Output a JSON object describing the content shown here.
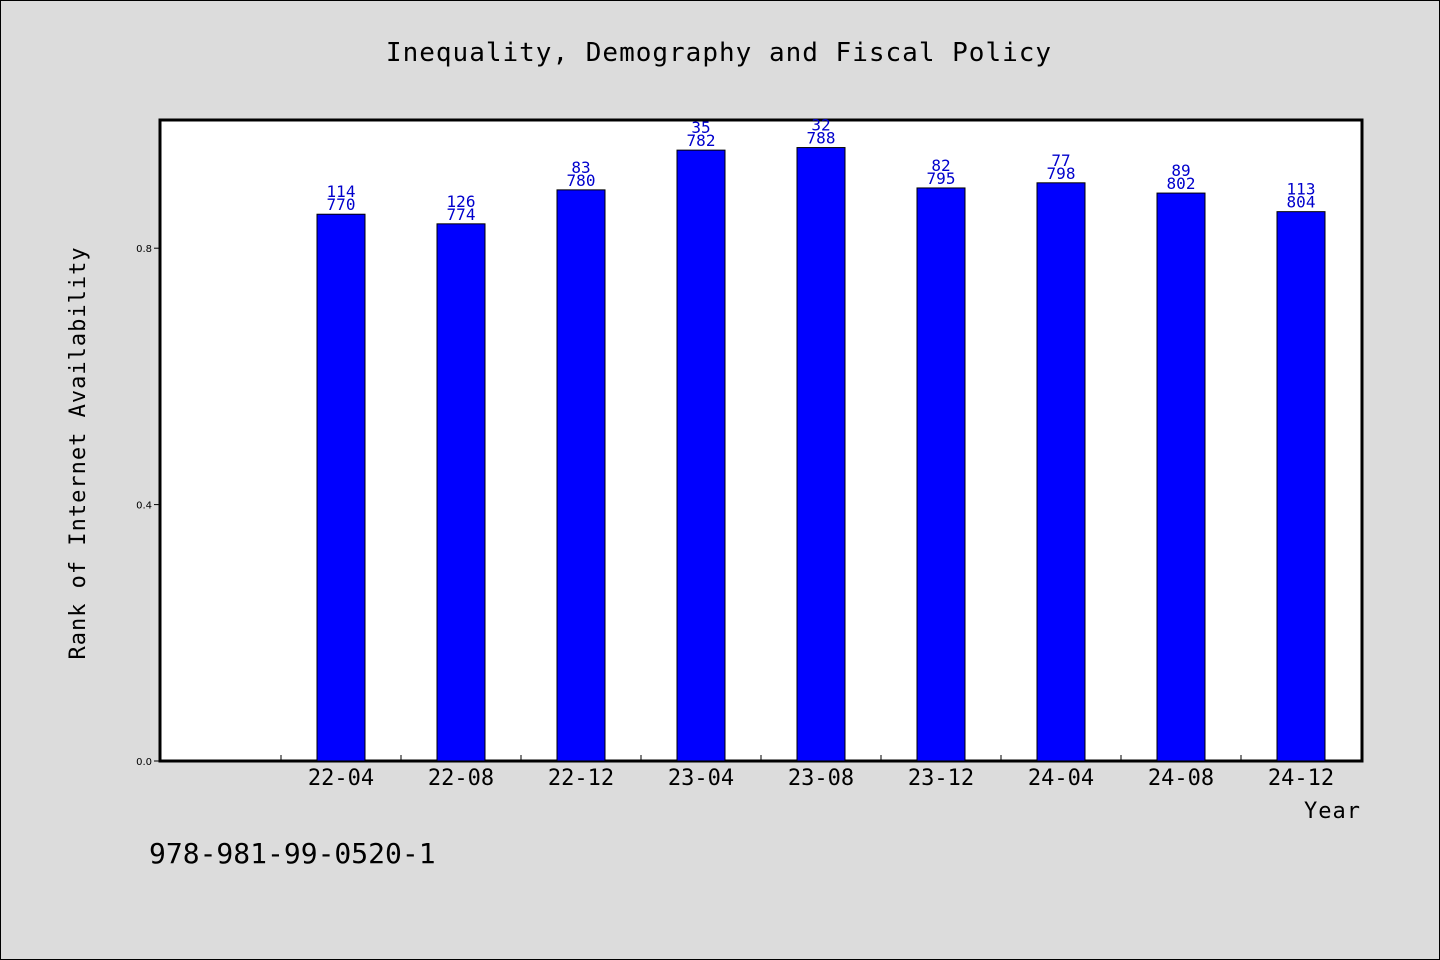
{
  "chart_data": {
    "type": "bar",
    "title": "Inequality, Demography and Fiscal Policy",
    "xlabel": "Year",
    "ylabel": "Rank of Internet Availability",
    "categories": [
      "22-04",
      "22-08",
      "22-12",
      "23-04",
      "23-08",
      "23-12",
      "24-04",
      "24-08",
      "24-12"
    ],
    "values": [
      0.853,
      0.838,
      0.891,
      0.953,
      0.957,
      0.894,
      0.902,
      0.886,
      0.857
    ],
    "labels_top": [
      "114",
      "126",
      "83",
      "35",
      "32",
      "82",
      "77",
      "89",
      "113"
    ],
    "labels_bottom": [
      "770",
      "774",
      "780",
      "782",
      "788",
      "795",
      "798",
      "802",
      "804"
    ],
    "yticks": [
      "0.0",
      "0.4",
      "0.8"
    ],
    "ytick_values": [
      0.0,
      0.4,
      0.8
    ],
    "ylim": [
      0,
      1.0
    ],
    "grid": false,
    "colors": {
      "bar": "#0000ff",
      "bar_edge": "#000000",
      "data_label": "#0000cc",
      "plot_bg": "#ffffff",
      "page_bg": "#dcdcdc"
    }
  },
  "footer": {
    "isbn": "978-981-99-0520-1"
  }
}
